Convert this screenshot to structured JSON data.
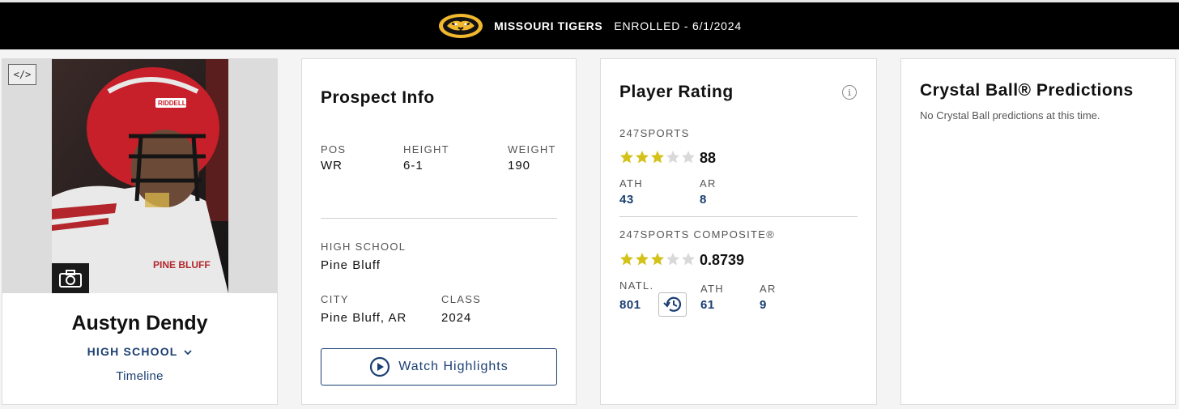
{
  "banner": {
    "team": "MISSOURI TIGERS",
    "status": "ENROLLED - 6/1/2024",
    "logo_icon": "tiger-logo-icon"
  },
  "player": {
    "name": "Austyn Dendy",
    "school_link": "HIGH SCHOOL",
    "timeline_link": "Timeline",
    "embed_label": "</>",
    "jersey_text": "PINE BLUFF",
    "helmet_text": "RIDDELL"
  },
  "prospect": {
    "title": "Prospect Info",
    "pos_label": "POS",
    "pos_value": "WR",
    "height_label": "HEIGHT",
    "height_value": "6-1",
    "weight_label": "WEIGHT",
    "weight_value": "190",
    "school_label": "HIGH SCHOOL",
    "school_value": "Pine Bluff",
    "city_label": "CITY",
    "city_value": "Pine Bluff, AR",
    "class_label": "CLASS",
    "class_value": "2024",
    "watch_label": "Watch Highlights"
  },
  "rating": {
    "title": "Player Rating",
    "info_glyph": "i",
    "sports_label": "247SPORTS",
    "sports_stars": 3,
    "sports_score": "88",
    "sports_ath_label": "ATH",
    "sports_ath_value": "43",
    "sports_ar_label": "AR",
    "sports_ar_value": "8",
    "composite_label": "247SPORTS COMPOSITE®",
    "composite_stars": 3,
    "composite_score": "0.8739",
    "natl_label": "NATL.",
    "natl_value": "801",
    "comp_ath_label": "ATH",
    "comp_ath_value": "61",
    "comp_ar_label": "AR",
    "comp_ar_value": "9"
  },
  "crystal_ball": {
    "title": "Crystal Ball® Predictions",
    "empty_text": "No Crystal Ball predictions at this time."
  },
  "colors": {
    "accent": "#1b3f73",
    "star_on": "#d4c21a",
    "star_off": "#d9d9d9",
    "gold": "#f1b82d"
  }
}
